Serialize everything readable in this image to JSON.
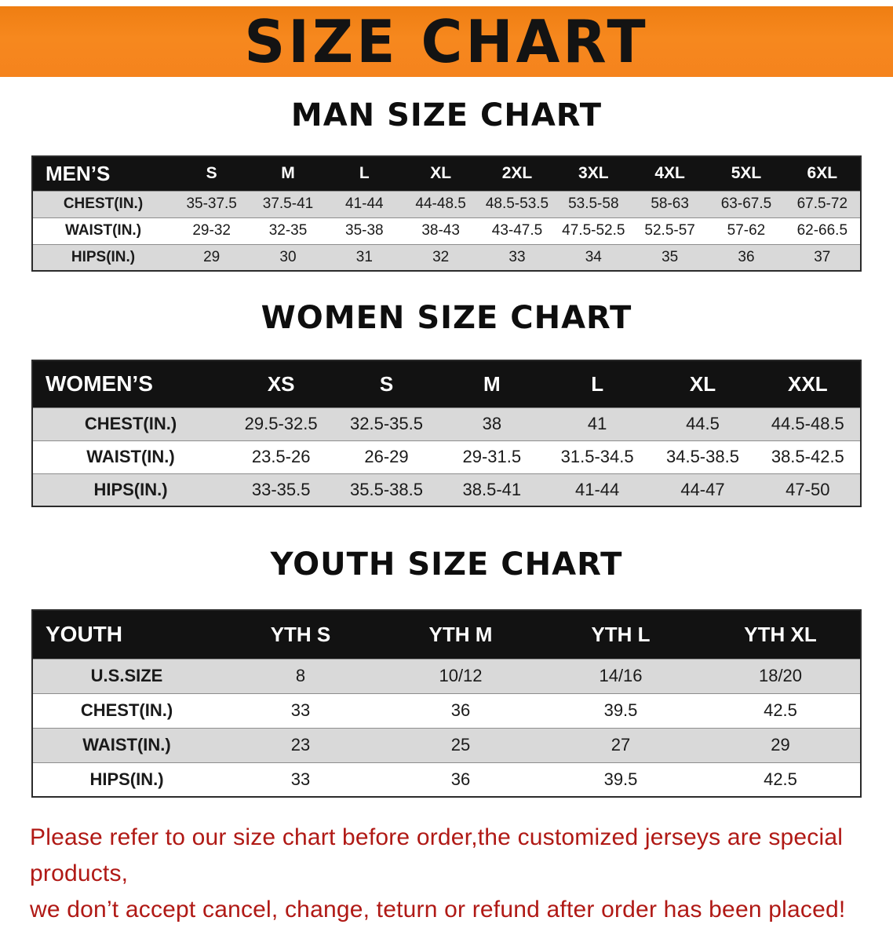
{
  "banner": {
    "title": "SIZE CHART",
    "bg_color": "#f5831d",
    "title_color": "#131313"
  },
  "sections": [
    {
      "heading": "MAN SIZE CHART",
      "table": {
        "header": [
          "MEN’S",
          "S",
          "M",
          "L",
          "XL",
          "2XL",
          "3XL",
          "4XL",
          "5XL",
          "6XL"
        ],
        "rows": [
          [
            "CHEST(IN.)",
            "35-37.5",
            "37.5-41",
            "41-44",
            "44-48.5",
            "48.5-53.5",
            "53.5-58",
            "58-63",
            "63-67.5",
            "67.5-72"
          ],
          [
            "WAIST(IN.)",
            "29-32",
            "32-35",
            "35-38",
            "38-43",
            "43-47.5",
            "47.5-52.5",
            "52.5-57",
            "57-62",
            "62-66.5"
          ],
          [
            "HIPS(IN.)",
            "29",
            "30",
            "31",
            "32",
            "33",
            "34",
            "35",
            "36",
            "37"
          ]
        ]
      }
    },
    {
      "heading": "WOMEN SIZE CHART",
      "table": {
        "header": [
          "WOMEN’S",
          "XS",
          "S",
          "M",
          "L",
          "XL",
          "XXL"
        ],
        "rows": [
          [
            "CHEST(IN.)",
            "29.5-32.5",
            "32.5-35.5",
            "38",
            "41",
            "44.5",
            "44.5-48.5"
          ],
          [
            "WAIST(IN.)",
            "23.5-26",
            "26-29",
            "29-31.5",
            "31.5-34.5",
            "34.5-38.5",
            "38.5-42.5"
          ],
          [
            "HIPS(IN.)",
            "33-35.5",
            "35.5-38.5",
            "38.5-41",
            "41-44",
            "44-47",
            "47-50"
          ]
        ]
      }
    },
    {
      "heading": "YOUTH SIZE CHART",
      "table": {
        "header": [
          "YOUTH",
          "YTH S",
          "YTH M",
          "YTH L",
          "YTH XL"
        ],
        "rows": [
          [
            "U.S.SIZE",
            "8",
            "10/12",
            "14/16",
            "18/20"
          ],
          [
            "CHEST(IN.)",
            "33",
            "36",
            "39.5",
            "42.5"
          ],
          [
            "WAIST(IN.)",
            "23",
            "25",
            "27",
            "29"
          ],
          [
            "HIPS(IN.)",
            "33",
            "36",
            "39.5",
            "42.5"
          ]
        ]
      }
    }
  ],
  "footer": {
    "line1": "Please refer to our size chart before order,the customized jerseys are special products,",
    "line2": "we don’t accept cancel, change, teturn or refund after order has been placed!",
    "text_color": "#b01915"
  },
  "colors": {
    "header_row_bg": "#121212",
    "header_row_text": "#ffffff",
    "stripe_row_bg": "#d9d9d9"
  }
}
